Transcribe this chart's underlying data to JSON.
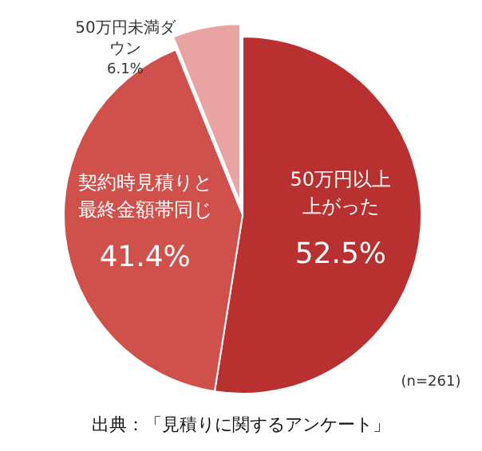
{
  "chart_data": {
    "type": "pie",
    "categories": [
      "50万円以上上がった",
      "契約時見積りと最終金額帯同じ",
      "50万円未満ダウン"
    ],
    "values": [
      52.5,
      41.4,
      6.1
    ],
    "colors": [
      "#b8302f",
      "#d0504c",
      "#e9a3a3"
    ],
    "value_labels": [
      "52.5%",
      "41.4%",
      "6.1%"
    ],
    "annotations": [
      "(n=261)",
      "出典：「見積りに関するアンケート」"
    ]
  }
}
